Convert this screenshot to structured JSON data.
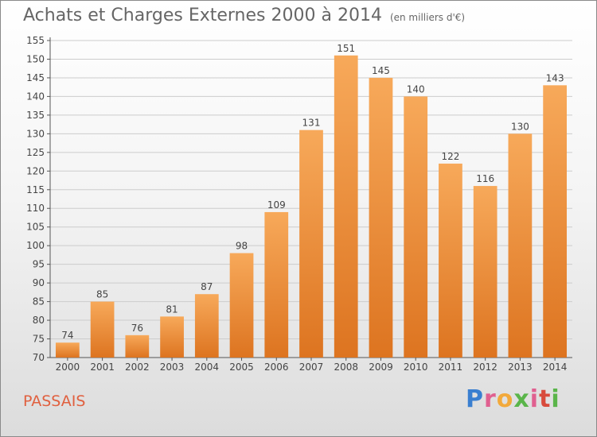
{
  "header": {
    "title": "Achats et Charges Externes 2000 à 2014",
    "unit": "(en milliers d'€)"
  },
  "footer": {
    "place": "PASSAIS",
    "logo": "Proxiti"
  },
  "colors": {
    "bar_top": "#f7a95a",
    "bar_bottom": "#dd7420",
    "axis_text": "#444444",
    "grid": "#cccccc"
  },
  "chart_data": {
    "type": "bar",
    "title": "Achats et Charges Externes 2000 à 2014",
    "subtitle": "(en milliers d'€)",
    "categories": [
      "2000",
      "2001",
      "2002",
      "2003",
      "2004",
      "2005",
      "2006",
      "2007",
      "2008",
      "2009",
      "2010",
      "2011",
      "2012",
      "2013",
      "2014"
    ],
    "values": [
      74,
      85,
      76,
      81,
      87,
      98,
      109,
      131,
      151,
      145,
      140,
      122,
      116,
      130,
      143
    ],
    "ylim": [
      70,
      155
    ],
    "yticks": [
      70,
      75,
      80,
      85,
      90,
      95,
      100,
      105,
      110,
      115,
      120,
      125,
      130,
      135,
      140,
      145,
      150,
      155
    ],
    "grid": true,
    "legend": "none"
  }
}
